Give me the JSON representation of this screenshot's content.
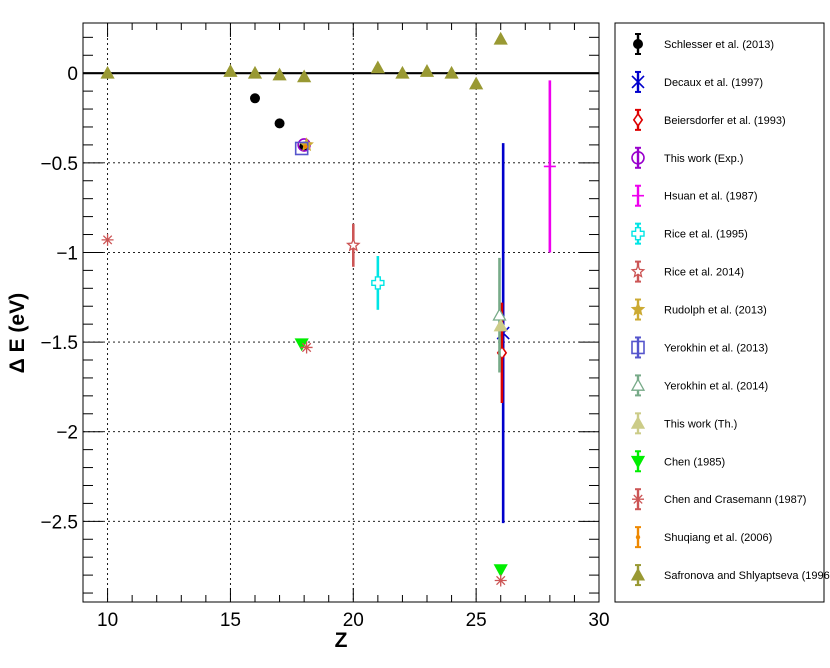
{
  "chart_data": {
    "type": "scatter",
    "title": "",
    "xlabel": "Z",
    "ylabel": "Δ E (eV)",
    "xlim": [
      9,
      30
    ],
    "ylim": [
      -2.95,
      0.28
    ],
    "x_ticks": [
      10,
      15,
      20,
      25,
      30
    ],
    "y_ticks": [
      0,
      -0.5,
      -1,
      -1.5,
      -2,
      -2.5
    ],
    "x_tick_labels": [
      "10",
      "15",
      "20",
      "25",
      "30"
    ],
    "y_tick_labels": [
      "0",
      "−0.5",
      "−1",
      "−1.5",
      "−2",
      "−2.5"
    ],
    "grid": true,
    "zero_line": 0,
    "legend_position": "right",
    "series": [
      {
        "name": "Schlesser et al. (2013)",
        "marker": "circle-filled",
        "color": "#000000",
        "points": [
          {
            "x": 16,
            "y": -0.14,
            "err": 0.005
          },
          {
            "x": 17,
            "y": -0.28,
            "err": 0.005
          },
          {
            "x": 18,
            "y": -0.41,
            "err": 0.005
          }
        ]
      },
      {
        "name": "Decaux et al. (1997)",
        "marker": "x",
        "color": "#0000cc",
        "points": [
          {
            "x": 26.1,
            "y": -1.45,
            "err": 1.06
          }
        ]
      },
      {
        "name": "Beiersdorfer et al. (1993)",
        "marker": "diamond-open",
        "color": "#dd0000",
        "points": [
          {
            "x": 26.05,
            "y": -1.56,
            "err": 0.28
          }
        ]
      },
      {
        "name": "This work (Exp.)",
        "marker": "circle-open",
        "color": "#9900cc",
        "points": [
          {
            "x": 18,
            "y": -0.4,
            "err": 0.005
          }
        ]
      },
      {
        "name": "Hsuan et al. (1987)",
        "marker": "plus",
        "color": "#ee00ee",
        "points": [
          {
            "x": 28,
            "y": -0.52,
            "err": 0.48
          }
        ]
      },
      {
        "name": "Rice et al. (1995)",
        "marker": "cross-open",
        "color": "#00e5e5",
        "points": [
          {
            "x": 21,
            "y": -1.17,
            "err": 0.15
          }
        ]
      },
      {
        "name": "Rice et al. 2014)",
        "marker": "star-open",
        "color": "#cc5555",
        "points": [
          {
            "x": 20,
            "y": -0.96,
            "err": 0.12
          }
        ]
      },
      {
        "name": "Rudolph et al. (2013)",
        "marker": "star-filled",
        "color": "#ccaa33",
        "points": [
          {
            "x": 18.1,
            "y": -0.4,
            "err": 0.02
          }
        ]
      },
      {
        "name": "Yerokhin et al. (2013)",
        "marker": "square-open",
        "color": "#5555cc",
        "points": [
          {
            "x": 17.9,
            "y": -0.42,
            "err": 0.005
          }
        ]
      },
      {
        "name": "Yerokhin et al. (2014)",
        "marker": "triangle-up-open",
        "color": "#77aa88",
        "points": [
          {
            "x": 25.95,
            "y": -1.35,
            "err": 0.32
          }
        ]
      },
      {
        "name": "This work (Th.)",
        "marker": "triangle-up-filled",
        "color": "#cccc88",
        "points": [
          {
            "x": 26,
            "y": -1.41,
            "err": 0.005
          }
        ]
      },
      {
        "name": "Chen  (1985)",
        "marker": "triangle-down-filled",
        "color": "#00ee00",
        "points": [
          {
            "x": 17.9,
            "y": -1.51,
            "err": 0
          },
          {
            "x": 26,
            "y": -2.77,
            "err": 0
          }
        ]
      },
      {
        "name": "Chen and Crasemann (1987)",
        "marker": "asterisk",
        "color": "#cc5555",
        "points": [
          {
            "x": 10,
            "y": -0.93,
            "err": 0
          },
          {
            "x": 18.1,
            "y": -1.53,
            "err": 0
          },
          {
            "x": 26,
            "y": -2.83,
            "err": 0
          }
        ]
      },
      {
        "name": "Shuqiang et al. (2006)",
        "marker": "dot",
        "color": "#ee8800",
        "points": [
          {
            "x": 18.05,
            "y": -0.41,
            "err": 0.01
          }
        ]
      },
      {
        "name": "Safronova and Shlyaptseva (1996)",
        "marker": "triangle-up-filled",
        "color": "#999933",
        "points": [
          {
            "x": 10,
            "y": 0.0,
            "err": 0
          },
          {
            "x": 15,
            "y": 0.01,
            "err": 0
          },
          {
            "x": 16,
            "y": 0.0,
            "err": 0
          },
          {
            "x": 17,
            "y": -0.01,
            "err": 0
          },
          {
            "x": 18,
            "y": -0.02,
            "err": 0
          },
          {
            "x": 21,
            "y": 0.03,
            "err": 0
          },
          {
            "x": 22,
            "y": 0.0,
            "err": 0
          },
          {
            "x": 23,
            "y": 0.01,
            "err": 0
          },
          {
            "x": 24,
            "y": 0.0,
            "err": 0
          },
          {
            "x": 25,
            "y": -0.06,
            "err": 0
          },
          {
            "x": 26,
            "y": 0.19,
            "err": 0
          }
        ]
      }
    ]
  }
}
